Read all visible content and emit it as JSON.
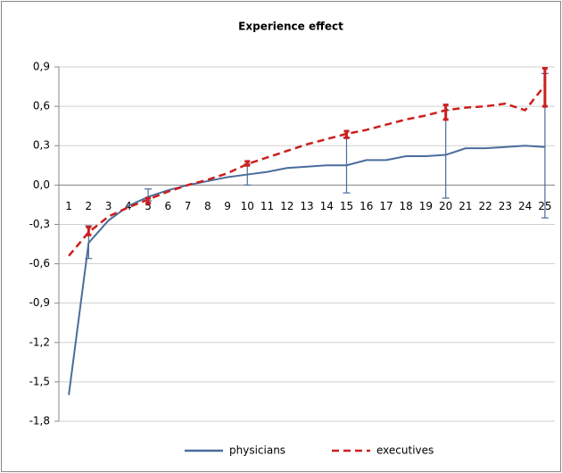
{
  "chart_data": {
    "type": "line",
    "title": "Experience effect",
    "categories": [
      1,
      2,
      3,
      4,
      5,
      6,
      7,
      8,
      9,
      10,
      11,
      12,
      13,
      14,
      15,
      16,
      17,
      18,
      19,
      20,
      21,
      22,
      23,
      24,
      25
    ],
    "ylim": [
      -1.8,
      0.9
    ],
    "yticks": [
      {
        "value": -1.8,
        "label": "-1,8"
      },
      {
        "value": -1.5,
        "label": "-1,5"
      },
      {
        "value": -1.2,
        "label": "-1,2"
      },
      {
        "value": -0.9,
        "label": "-0,9"
      },
      {
        "value": -0.6,
        "label": "-0,6"
      },
      {
        "value": -0.3,
        "label": "-0,3"
      },
      {
        "value": 0,
        "label": "0,0"
      },
      {
        "value": 0.3,
        "label": "0,3"
      },
      {
        "value": 0.6,
        "label": "0,6"
      },
      {
        "value": 0.9,
        "label": "0,9"
      }
    ],
    "grid": true,
    "legend": "bottom",
    "series": [
      {
        "name": "physicians",
        "color": "#4a6d9c",
        "dash": false,
        "values": [
          -1.6,
          -0.44,
          -0.27,
          -0.16,
          -0.09,
          -0.04,
          0.0,
          0.03,
          0.06,
          0.08,
          0.1,
          0.13,
          0.14,
          0.15,
          0.15,
          0.19,
          0.19,
          0.22,
          0.22,
          0.23,
          0.28,
          0.28,
          0.29,
          0.3,
          0.29
        ],
        "error_low": [
          null,
          -0.56,
          null,
          null,
          -0.12,
          null,
          null,
          null,
          null,
          0.0,
          null,
          null,
          null,
          null,
          -0.06,
          null,
          null,
          null,
          null,
          -0.1,
          null,
          null,
          null,
          null,
          -0.25
        ],
        "error_high": [
          null,
          -0.31,
          null,
          null,
          -0.03,
          null,
          null,
          null,
          null,
          0.16,
          null,
          null,
          null,
          null,
          0.36,
          null,
          null,
          null,
          null,
          0.57,
          null,
          null,
          null,
          null,
          0.85
        ]
      },
      {
        "name": "executives",
        "color": "#cc1f1f",
        "dash": true,
        "values": [
          -0.54,
          -0.36,
          -0.24,
          -0.17,
          -0.11,
          -0.05,
          0.0,
          0.04,
          0.09,
          0.16,
          0.21,
          0.26,
          0.31,
          0.35,
          0.39,
          0.42,
          0.46,
          0.5,
          0.53,
          0.57,
          0.59,
          0.6,
          0.62,
          0.57,
          0.76
        ],
        "error_low": [
          null,
          -0.38,
          null,
          null,
          -0.14,
          null,
          null,
          null,
          null,
          0.15,
          null,
          null,
          null,
          null,
          0.36,
          null,
          null,
          null,
          null,
          0.5,
          null,
          null,
          null,
          null,
          0.6
        ],
        "error_high": [
          null,
          -0.32,
          null,
          null,
          -0.1,
          null,
          null,
          null,
          null,
          0.18,
          null,
          null,
          null,
          null,
          0.41,
          null,
          null,
          null,
          null,
          0.61,
          null,
          null,
          null,
          null,
          0.89
        ]
      }
    ]
  }
}
